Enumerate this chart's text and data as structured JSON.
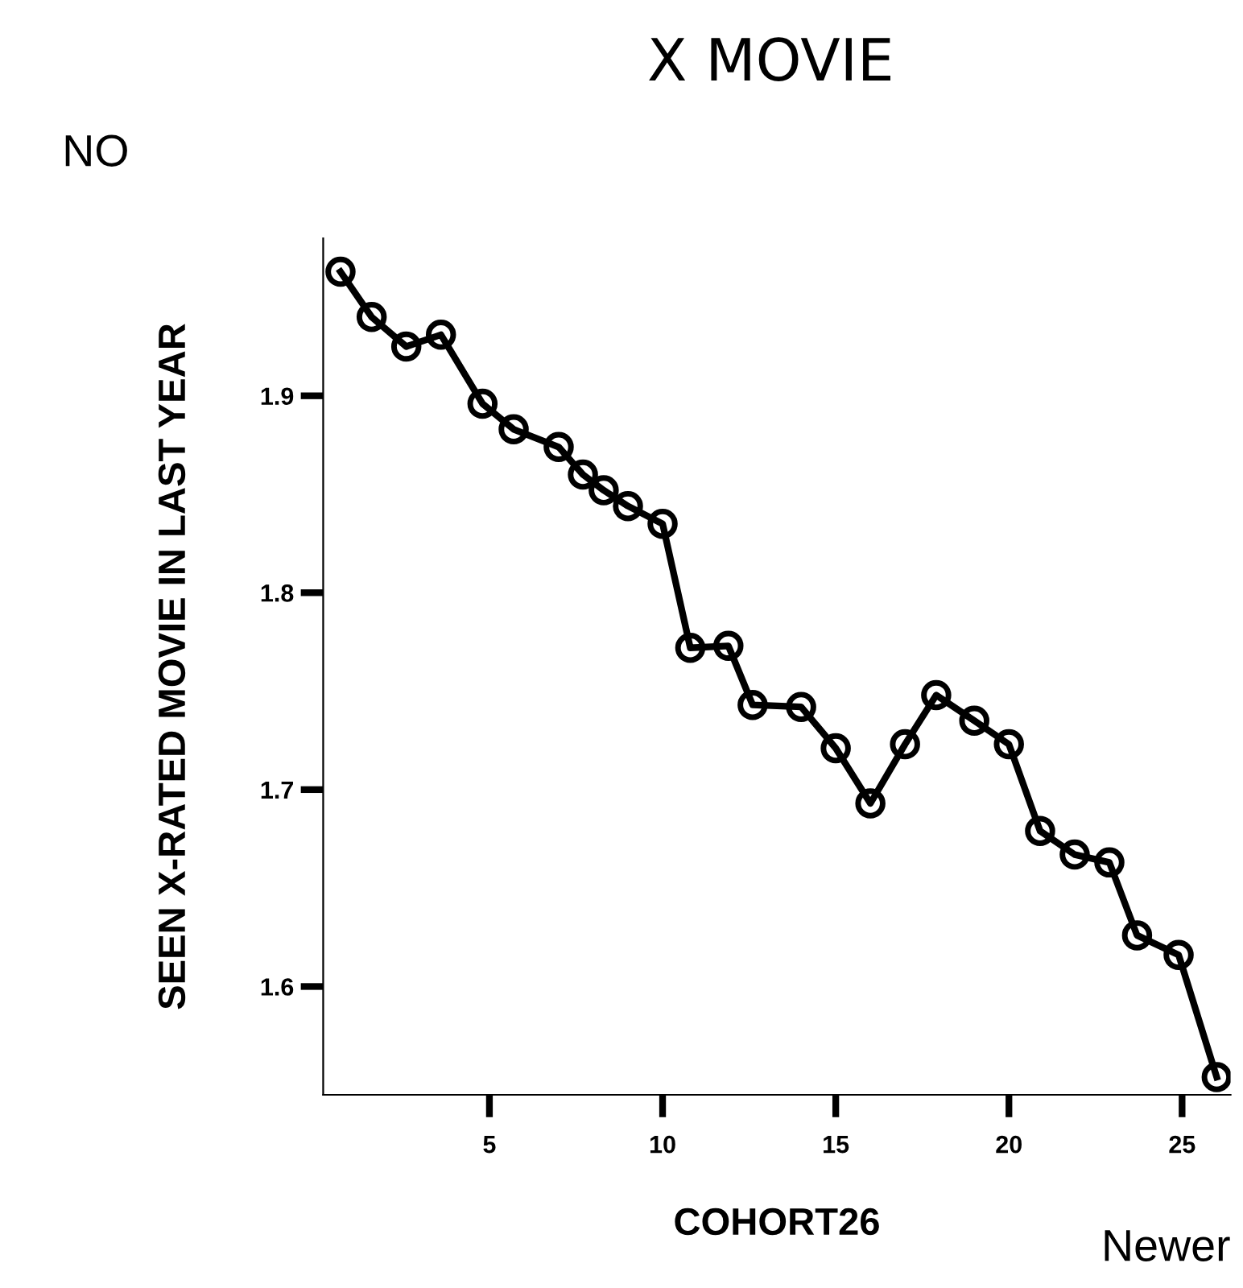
{
  "chart_data": {
    "type": "line",
    "title": "X MOVIE",
    "xlabel": "COHORT26",
    "ylabel": "SEEN X-RATED MOVIE IN LAST YEAR",
    "annotations": [
      "NO",
      "Newer"
    ],
    "x": [
      0.7,
      1.6,
      2.6,
      3.6,
      4.8,
      5.7,
      7.0,
      7.7,
      8.3,
      9.0,
      10.0,
      10.8,
      11.9,
      12.6,
      14.0,
      15.0,
      16.0,
      17.0,
      17.9,
      19.0,
      20.0,
      20.9,
      21.9,
      22.9,
      23.7,
      24.9,
      26.0
    ],
    "series": [
      {
        "color": "#000000",
        "values": [
          1.963,
          1.94,
          1.925,
          1.931,
          1.896,
          1.883,
          1.874,
          1.86,
          1.852,
          1.844,
          1.835,
          1.772,
          1.773,
          1.743,
          1.742,
          1.721,
          1.693,
          1.723,
          1.748,
          1.735,
          1.723,
          1.679,
          1.667,
          1.663,
          1.626,
          1.616,
          1.554
        ]
      }
    ],
    "xlim": [
      0.2,
      26.4
    ],
    "ylim": [
      1.545,
      1.98
    ],
    "xticks": [
      5,
      10,
      15,
      20,
      25
    ],
    "yticks": [
      1.6,
      1.7,
      1.8,
      1.9
    ],
    "marker": "circle",
    "line_style": "solid",
    "grid": false,
    "legend": false
  }
}
